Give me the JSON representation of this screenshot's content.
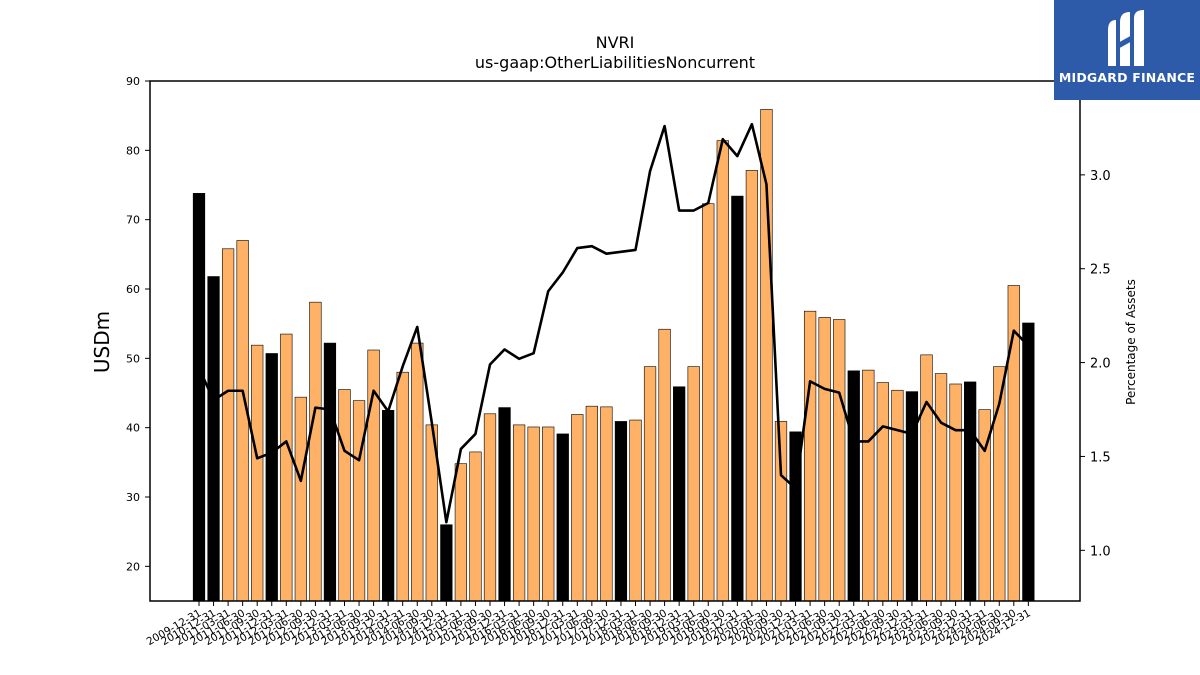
{
  "chart_data": {
    "type": "bar",
    "title": "NVRI",
    "subtitle": "us-gaap:OtherLiabilitiesNoncurrent",
    "ylabel": "USDm",
    "y2label": "Percentage of Assets",
    "ylim": [
      15,
      90
    ],
    "y2lim": [
      0.73,
      3.5
    ],
    "yticks": [
      20,
      30,
      40,
      50,
      60,
      70,
      80,
      90
    ],
    "y2ticks": [
      "1.0",
      "1.5",
      "2.0",
      "2.5",
      "3.0"
    ],
    "categories": [
      "2009-12-31",
      "2010-12-31",
      "2011-03-31",
      "2011-06-30",
      "2011-09-30",
      "2011-12-31",
      "2012-03-31",
      "2012-06-30",
      "2012-09-30",
      "2012-12-31",
      "2013-03-31",
      "2013-06-30",
      "2013-09-30",
      "2013-12-31",
      "2014-03-31",
      "2014-06-30",
      "2014-09-30",
      "2014-12-31",
      "2015-03-31",
      "2015-06-30",
      "2015-09-30",
      "2015-12-31",
      "2016-03-31",
      "2016-06-30",
      "2016-09-30",
      "2016-12-31",
      "2017-03-31",
      "2017-06-30",
      "2017-09-30",
      "2017-12-31",
      "2018-03-31",
      "2018-06-30",
      "2018-09-30",
      "2018-12-31",
      "2019-03-31",
      "2019-06-30",
      "2019-09-30",
      "2019-12-31",
      "2020-03-31",
      "2020-06-30",
      "2020-09-30",
      "2020-12-31",
      "2021-03-31",
      "2021-06-30",
      "2021-09-30",
      "2021-12-31",
      "2022-03-31",
      "2022-06-30",
      "2022-09-30",
      "2022-12-31",
      "2023-03-31",
      "2023-06-30",
      "2023-09-30",
      "2023-12-31",
      "2024-03-31",
      "2024-06-30",
      "2024-09-30",
      "2024-12-31"
    ],
    "series": [
      {
        "kind": "bar",
        "values": [
          73.8,
          61.8,
          65.8,
          67.0,
          51.9,
          50.7,
          53.5,
          44.4,
          58.1,
          52.2,
          45.5,
          43.9,
          51.2,
          42.5,
          48.0,
          52.2,
          40.4,
          26.0,
          34.8,
          36.5,
          42.0,
          42.9,
          40.4,
          40.1,
          40.1,
          39.1,
          41.9,
          43.1,
          43.0,
          40.9,
          41.1,
          48.8,
          54.2,
          45.9,
          48.8,
          72.3,
          81.4,
          73.4,
          77.1,
          85.9,
          40.9,
          39.4,
          56.8,
          55.9,
          55.6,
          48.2,
          48.3,
          46.5,
          45.4,
          45.2,
          50.5,
          47.8,
          46.3,
          46.6,
          42.6,
          48.8,
          60.5,
          55.1
        ],
        "colors": {
          "year_end": "#000000",
          "quarter": "#ffb266"
        }
      },
      {
        "kind": "line",
        "color": "#000000",
        "values": [
          1.97,
          1.8,
          1.85,
          1.85,
          1.49,
          1.52,
          1.58,
          1.37,
          1.76,
          1.75,
          1.53,
          1.48,
          1.85,
          1.74,
          1.98,
          2.19,
          1.68,
          1.15,
          1.54,
          1.62,
          1.99,
          2.07,
          2.02,
          2.05,
          2.38,
          2.48,
          2.61,
          2.62,
          2.58,
          2.59,
          2.6,
          3.02,
          3.26,
          2.81,
          2.81,
          2.85,
          3.19,
          3.1,
          3.27,
          2.95,
          1.4,
          1.33,
          1.9,
          1.86,
          1.84,
          1.58,
          1.58,
          1.66,
          1.64,
          1.62,
          1.79,
          1.68,
          1.64,
          1.64,
          1.53,
          1.78,
          2.17,
          2.09
        ]
      }
    ]
  },
  "logo": {
    "text": "MIDGARD FINANCE"
  }
}
